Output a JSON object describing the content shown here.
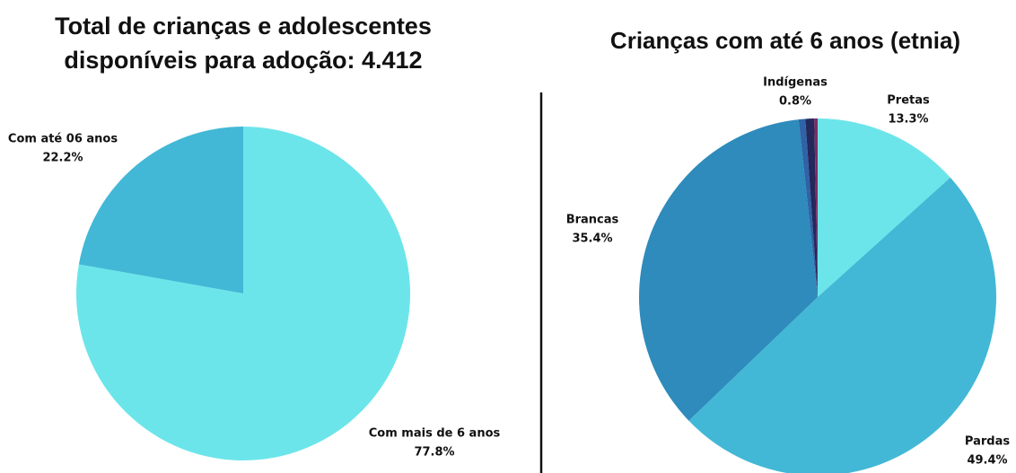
{
  "chart_data": [
    {
      "type": "pie",
      "title": "Total de crianças e adolescentes disponíveis para adoção: 4.412",
      "categories": [
        "Com mais de 6 anos",
        "Com até 06 anos"
      ],
      "values": [
        77.8,
        22.2
      ],
      "value_labels": [
        "77.8%",
        "22.2%"
      ],
      "colors": [
        "#6ce5ea",
        "#42b8d6"
      ]
    },
    {
      "type": "pie",
      "title": "Crianças com até 6 anos (etnia)",
      "categories": [
        "Pretas",
        "Pardas",
        "Brancas",
        null,
        "Indígenas",
        null
      ],
      "values": [
        13.3,
        49.4,
        35.4,
        0.6,
        0.8,
        0.3
      ],
      "value_labels": [
        "13.3%",
        "49.4%",
        "35.4%",
        null,
        "0.8%",
        null
      ],
      "colors": [
        "#6ce5ea",
        "#42b8d6",
        "#2e8bbb",
        "#2f63a8",
        "#25285a",
        "#7a2d63"
      ]
    }
  ]
}
